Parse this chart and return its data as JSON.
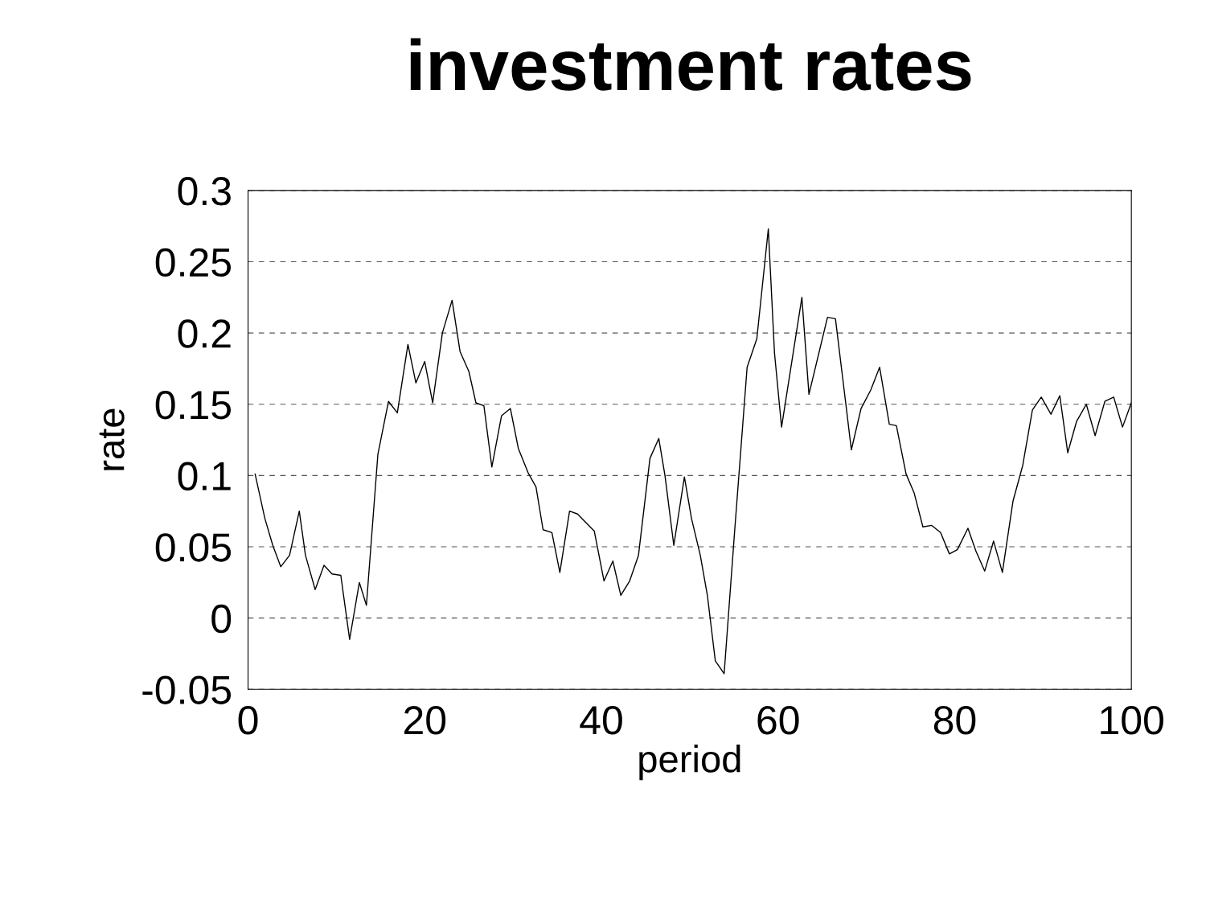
{
  "chart_data": {
    "type": "line",
    "title": "investment rates",
    "xlabel": "period",
    "ylabel": "rate",
    "xlim": [
      0,
      100
    ],
    "xticks": [
      0,
      20,
      40,
      60,
      80,
      100
    ],
    "ylim": [
      -0.05,
      0.3
    ],
    "yticks": [
      -0.05,
      0,
      0.05,
      0.1,
      0.15,
      0.2,
      0.25,
      0.3
    ],
    "grid": "y",
    "legend": false,
    "marker": "none",
    "line_style": "solid",
    "series": [
      {
        "color": "#000000",
        "x": [
          0.8,
          1.9,
          2.8,
          3.7,
          4.7,
          5.8,
          6.5,
          7.6,
          8.6,
          9.5,
          10.5,
          11.5,
          12.6,
          13.4,
          14.7,
          15.9,
          16.9,
          18.1,
          19.0,
          20.0,
          20.9,
          22.0,
          23.1,
          24.0,
          25.0,
          25.8,
          26.7,
          27.6,
          28.7,
          29.7,
          30.6,
          31.7,
          32.6,
          33.4,
          34.4,
          35.3,
          36.4,
          37.3,
          39.2,
          40.3,
          41.3,
          42.2,
          43.2,
          44.2,
          45.5,
          46.5,
          47.2,
          48.2,
          49.4,
          50.2,
          51.2,
          52.0,
          52.9,
          53.9,
          55.1,
          56.5,
          57.6,
          58.9,
          59.6,
          60.4,
          62.7,
          63.5,
          65.6,
          66.5,
          67.7,
          68.3,
          69.4,
          70.5,
          71.5,
          72.6,
          73.4,
          74.5,
          75.4,
          76.4,
          77.4,
          78.4,
          79.4,
          80.3,
          81.5,
          82.4,
          83.4,
          84.4,
          85.4,
          86.6,
          87.7,
          88.8,
          89.8,
          90.9,
          91.9,
          92.8,
          93.8,
          94.9,
          95.9,
          97.0,
          98.0,
          99.0,
          100.0
        ],
        "values": [
          0.101,
          0.07,
          0.051,
          0.036,
          0.044,
          0.075,
          0.044,
          0.02,
          0.037,
          0.031,
          0.03,
          -0.015,
          0.025,
          0.009,
          0.115,
          0.152,
          0.144,
          0.192,
          0.165,
          0.18,
          0.151,
          0.2,
          0.223,
          0.187,
          0.173,
          0.151,
          0.149,
          0.106,
          0.142,
          0.147,
          0.119,
          0.102,
          0.092,
          0.062,
          0.06,
          0.032,
          0.075,
          0.073,
          0.061,
          0.026,
          0.04,
          0.016,
          0.026,
          0.044,
          0.112,
          0.126,
          0.1,
          0.051,
          0.099,
          0.07,
          0.044,
          0.016,
          -0.03,
          -0.039,
          0.062,
          0.176,
          0.196,
          0.273,
          0.186,
          0.134,
          0.225,
          0.157,
          0.211,
          0.21,
          0.149,
          0.118,
          0.147,
          0.16,
          0.176,
          0.136,
          0.135,
          0.101,
          0.088,
          0.064,
          0.065,
          0.06,
          0.045,
          0.048,
          0.063,
          0.047,
          0.033,
          0.054,
          0.032,
          0.082,
          0.107,
          0.146,
          0.155,
          0.143,
          0.156,
          0.116,
          0.138,
          0.15,
          0.128,
          0.152,
          0.155,
          0.134,
          0.151
        ]
      }
    ]
  }
}
